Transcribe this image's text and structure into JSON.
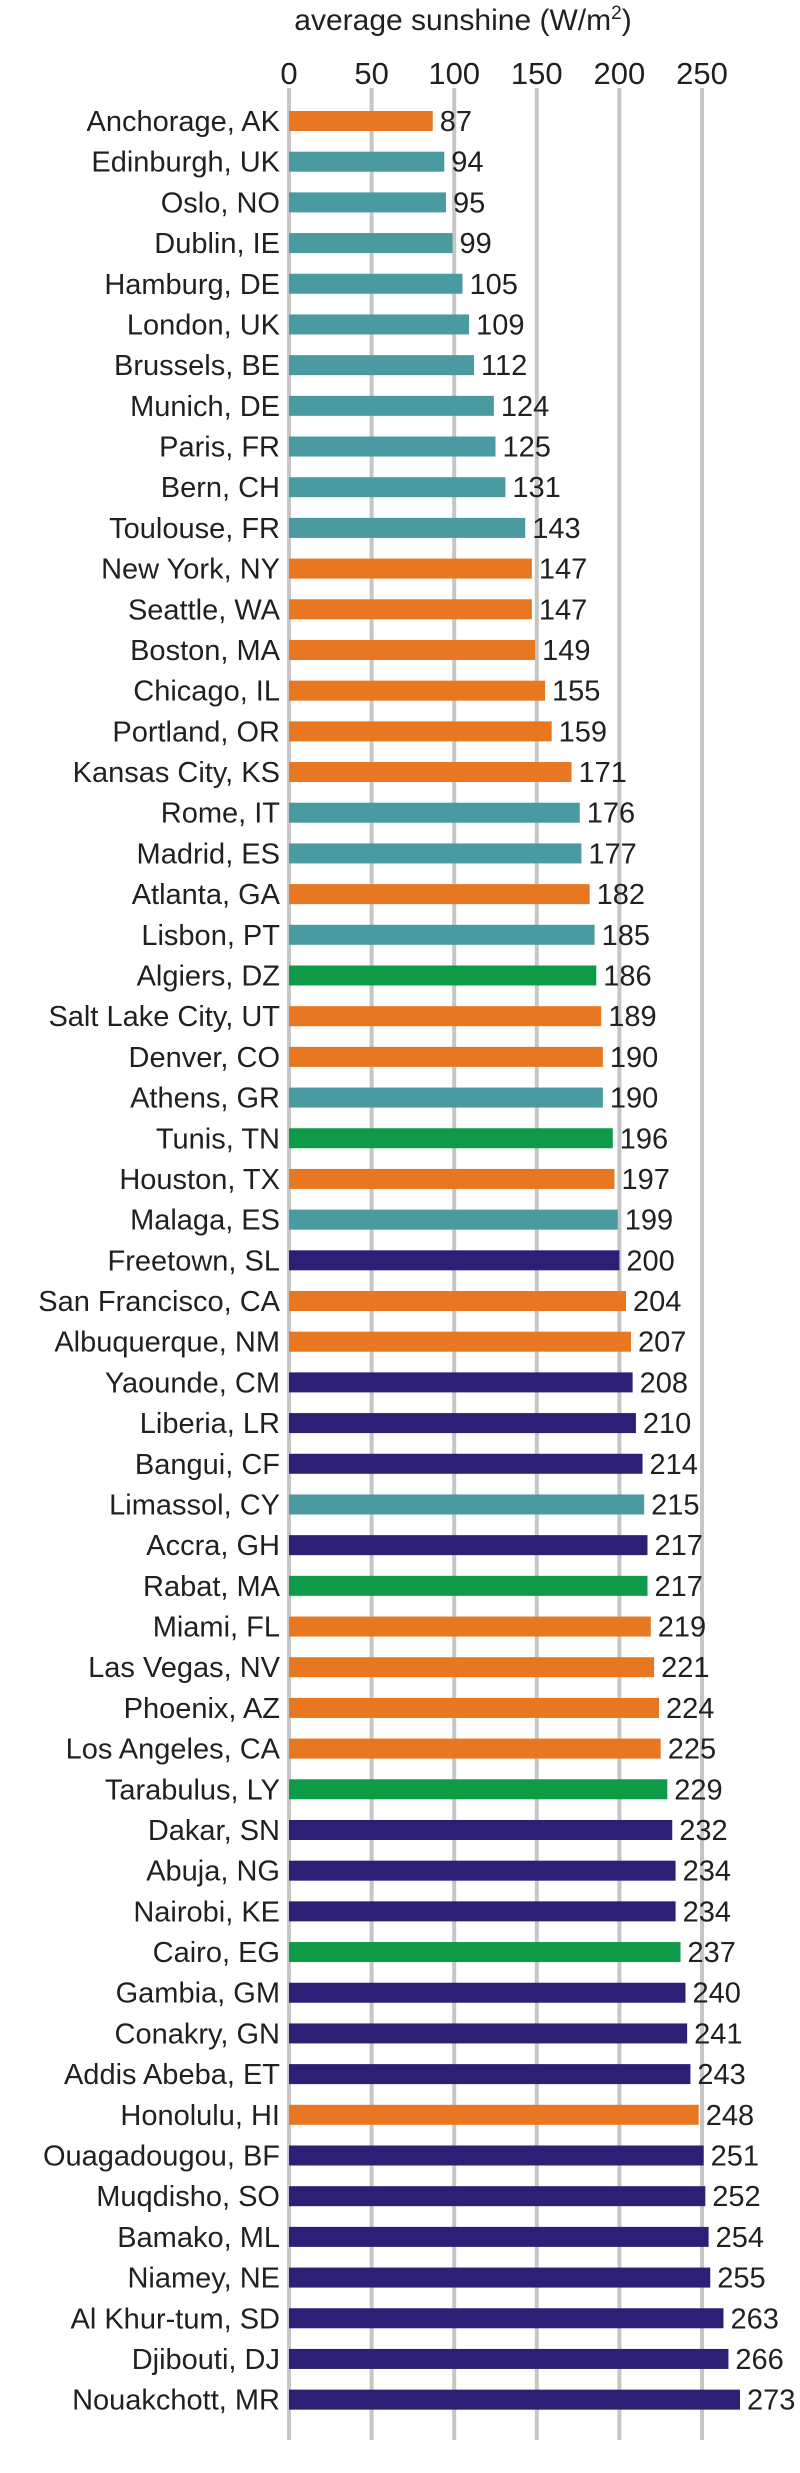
{
  "chart_data": {
    "type": "bar",
    "orientation": "horizontal",
    "axis_title_prefix": "average sunshine (W/m",
    "axis_title_superscript": "2",
    "axis_title_suffix": ")",
    "xlim": [
      0,
      275
    ],
    "xticks": [
      0,
      50,
      100,
      150,
      200,
      250
    ],
    "grid": "vertical",
    "legend": "none",
    "group_colors": {
      "usa": "#e87722",
      "europe": "#4a9aa1",
      "north_africa": "#0f9a48",
      "sub_saharan_africa": "#2d1f76"
    },
    "bars": [
      {
        "label": "Anchorage, AK",
        "value": 87,
        "group": "usa"
      },
      {
        "label": "Edinburgh, UK",
        "value": 94,
        "group": "europe"
      },
      {
        "label": "Oslo, NO",
        "value": 95,
        "group": "europe"
      },
      {
        "label": "Dublin, IE",
        "value": 99,
        "group": "europe"
      },
      {
        "label": "Hamburg, DE",
        "value": 105,
        "group": "europe"
      },
      {
        "label": "London, UK",
        "value": 109,
        "group": "europe"
      },
      {
        "label": "Brussels, BE",
        "value": 112,
        "group": "europe"
      },
      {
        "label": "Munich, DE",
        "value": 124,
        "group": "europe"
      },
      {
        "label": "Paris, FR",
        "value": 125,
        "group": "europe"
      },
      {
        "label": "Bern, CH",
        "value": 131,
        "group": "europe"
      },
      {
        "label": "Toulouse, FR",
        "value": 143,
        "group": "europe"
      },
      {
        "label": "New York, NY",
        "value": 147,
        "group": "usa"
      },
      {
        "label": "Seattle, WA",
        "value": 147,
        "group": "usa"
      },
      {
        "label": "Boston, MA",
        "value": 149,
        "group": "usa"
      },
      {
        "label": "Chicago, IL",
        "value": 155,
        "group": "usa"
      },
      {
        "label": "Portland, OR",
        "value": 159,
        "group": "usa"
      },
      {
        "label": "Kansas City, KS",
        "value": 171,
        "group": "usa"
      },
      {
        "label": "Rome, IT",
        "value": 176,
        "group": "europe"
      },
      {
        "label": "Madrid, ES",
        "value": 177,
        "group": "europe"
      },
      {
        "label": "Atlanta, GA",
        "value": 182,
        "group": "usa"
      },
      {
        "label": "Lisbon, PT",
        "value": 185,
        "group": "europe"
      },
      {
        "label": "Algiers, DZ",
        "value": 186,
        "group": "north_africa"
      },
      {
        "label": "Salt Lake City, UT",
        "value": 189,
        "group": "usa"
      },
      {
        "label": "Denver, CO",
        "value": 190,
        "group": "usa"
      },
      {
        "label": "Athens, GR",
        "value": 190,
        "group": "europe"
      },
      {
        "label": "Tunis, TN",
        "value": 196,
        "group": "north_africa"
      },
      {
        "label": "Houston, TX",
        "value": 197,
        "group": "usa"
      },
      {
        "label": "Malaga, ES",
        "value": 199,
        "group": "europe"
      },
      {
        "label": "Freetown, SL",
        "value": 200,
        "group": "sub_saharan_africa"
      },
      {
        "label": "San Francisco, CA",
        "value": 204,
        "group": "usa"
      },
      {
        "label": "Albuquerque, NM",
        "value": 207,
        "group": "usa"
      },
      {
        "label": "Yaounde, CM",
        "value": 208,
        "group": "sub_saharan_africa"
      },
      {
        "label": "Liberia, LR",
        "value": 210,
        "group": "sub_saharan_africa"
      },
      {
        "label": "Bangui, CF",
        "value": 214,
        "group": "sub_saharan_africa"
      },
      {
        "label": "Limassol, CY",
        "value": 215,
        "group": "europe"
      },
      {
        "label": "Accra, GH",
        "value": 217,
        "group": "sub_saharan_africa"
      },
      {
        "label": "Rabat, MA",
        "value": 217,
        "group": "north_africa"
      },
      {
        "label": "Miami, FL",
        "value": 219,
        "group": "usa"
      },
      {
        "label": "Las Vegas, NV",
        "value": 221,
        "group": "usa"
      },
      {
        "label": "Phoenix, AZ",
        "value": 224,
        "group": "usa"
      },
      {
        "label": "Los Angeles, CA",
        "value": 225,
        "group": "usa"
      },
      {
        "label": "Tarabulus, LY",
        "value": 229,
        "group": "north_africa"
      },
      {
        "label": "Dakar, SN",
        "value": 232,
        "group": "sub_saharan_africa"
      },
      {
        "label": "Abuja, NG",
        "value": 234,
        "group": "sub_saharan_africa"
      },
      {
        "label": "Nairobi, KE",
        "value": 234,
        "group": "sub_saharan_africa"
      },
      {
        "label": "Cairo, EG",
        "value": 237,
        "group": "north_africa"
      },
      {
        "label": "Gambia, GM",
        "value": 240,
        "group": "sub_saharan_africa"
      },
      {
        "label": "Conakry, GN",
        "value": 241,
        "group": "sub_saharan_africa"
      },
      {
        "label": "Addis Abeba, ET",
        "value": 243,
        "group": "sub_saharan_africa"
      },
      {
        "label": "Honolulu, HI",
        "value": 248,
        "group": "usa"
      },
      {
        "label": "Ouagadougou, BF",
        "value": 251,
        "group": "sub_saharan_africa"
      },
      {
        "label": "Muqdisho, SO",
        "value": 252,
        "group": "sub_saharan_africa"
      },
      {
        "label": "Bamako, ML",
        "value": 254,
        "group": "sub_saharan_africa"
      },
      {
        "label": "Niamey, NE",
        "value": 255,
        "group": "sub_saharan_africa"
      },
      {
        "label": "Al Khur-tum, SD",
        "value": 263,
        "group": "sub_saharan_africa"
      },
      {
        "label": "Djibouti, DJ",
        "value": 266,
        "group": "sub_saharan_africa"
      },
      {
        "label": "Nouakchott, MR",
        "value": 273,
        "group": "sub_saharan_africa"
      }
    ]
  }
}
